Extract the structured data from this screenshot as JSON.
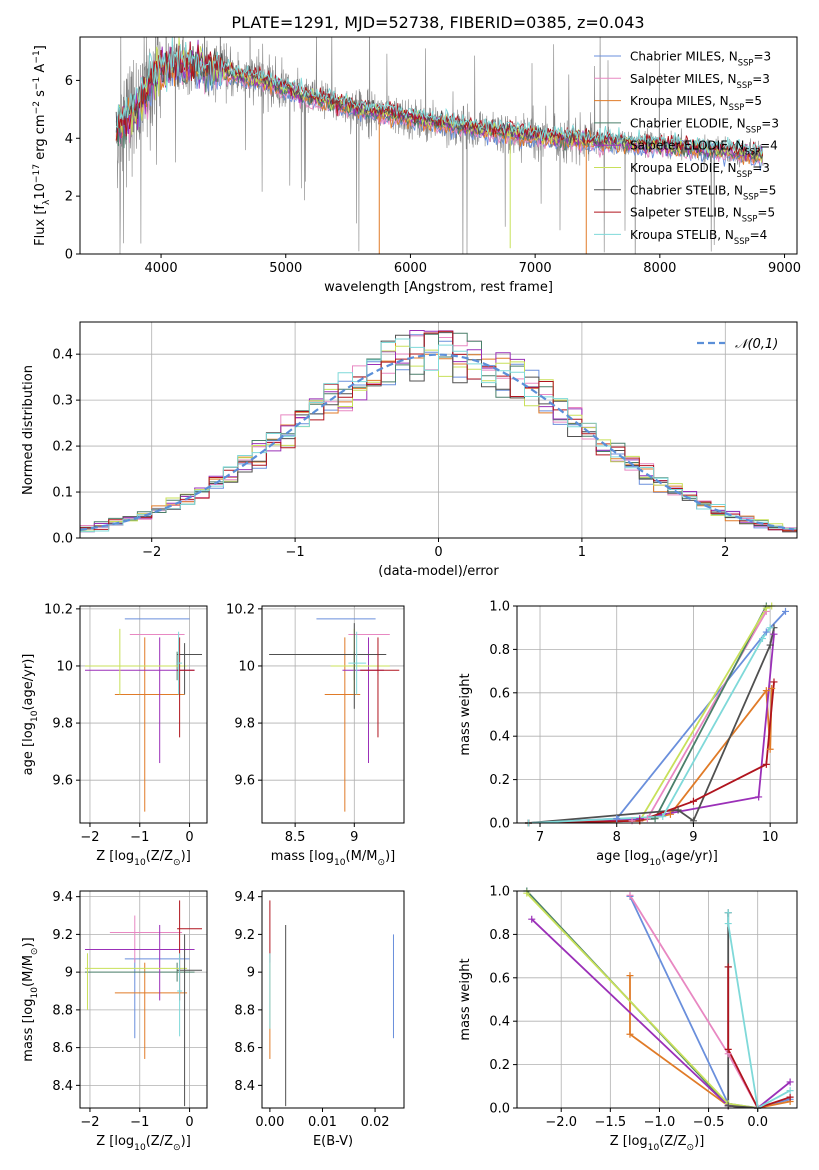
{
  "title": "PLATE=1291, MJD=52738, FIBERID=0385, z=0.043",
  "colors": {
    "Chabrier MILES": "#6a8fdc",
    "Salpeter MILES": "#e888c2",
    "Kroupa MILES": "#e07b28",
    "Chabrier ELODIE": "#4a7f6a",
    "Salpeter ELODIE": "#9b30b8",
    "Kroupa ELODIE": "#c8e05a",
    "Chabrier STELIB": "#505050",
    "Salpeter STELIB": "#b0141e",
    "Kroupa STELIB": "#7fd9d9",
    "data": "#808080",
    "normal": "#5b8fd8",
    "grid": "#b0b0b0"
  },
  "chart_data": [
    {
      "id": "spectrum",
      "type": "line",
      "xlabel": "wavelength [Angstrom, rest frame]",
      "ylabel": "Flux [f$_\\lambda$10$^{-17}$ erg cm$^{-2}$ s$^{-1}$ A$^{-1}$]",
      "xlim": [
        3350,
        9100
      ],
      "ylim": [
        0,
        7.5
      ],
      "xticks": [
        4000,
        5000,
        6000,
        7000,
        8000,
        9000
      ],
      "yticks": [
        0,
        2,
        4,
        6
      ],
      "grid": false,
      "legend_position": "top-right",
      "legend": [
        {
          "name": "Chabrier MILES",
          "nssp": "3"
        },
        {
          "name": "Salpeter MILES",
          "nssp": "3"
        },
        {
          "name": "Kroupa MILES",
          "nssp": "5"
        },
        {
          "name": "Chabrier ELODIE",
          "nssp": "3"
        },
        {
          "name": "Salpeter ELODIE",
          "nssp": "4"
        },
        {
          "name": "Kroupa ELODIE",
          "nssp": "3"
        },
        {
          "name": "Chabrier STELIB",
          "nssp": "5"
        },
        {
          "name": "Salpeter STELIB",
          "nssp": "5"
        },
        {
          "name": "Kroupa STELIB",
          "nssp": "4"
        }
      ],
      "data_range": [
        3640,
        8830
      ],
      "continuum_points": [
        [
          3640,
          4.2
        ],
        [
          3800,
          5.0
        ],
        [
          3950,
          6.2
        ],
        [
          4100,
          6.6
        ],
        [
          4500,
          6.3
        ],
        [
          4800,
          6.0
        ],
        [
          5200,
          5.4
        ],
        [
          5600,
          5.0
        ],
        [
          6000,
          4.7
        ],
        [
          6500,
          4.35
        ],
        [
          7000,
          4.05
        ],
        [
          7500,
          3.9
        ],
        [
          8000,
          3.75
        ],
        [
          8500,
          3.55
        ],
        [
          8830,
          3.4
        ]
      ]
    },
    {
      "id": "residuals",
      "type": "histogram",
      "xlabel": "(data-model)/error",
      "ylabel": "Normed distribution",
      "xlim": [
        -2.5,
        2.5
      ],
      "ylim": [
        0,
        0.47
      ],
      "xticks": [
        -2,
        -1,
        0,
        1,
        2
      ],
      "yticks": [
        0.0,
        0.1,
        0.2,
        0.3,
        0.4
      ],
      "grid": true,
      "bin_width": 0.1,
      "legend_position": "top-right",
      "legend": [
        {
          "name": "$\\mathcal{N}(0,1)$",
          "style": "dashed"
        }
      ]
    },
    {
      "id": "age_vs_Z",
      "type": "errorbar",
      "xlabel": "Z [log$_{10}$($Z$/$Z_\\odot$)]",
      "ylabel": "age  [log$_{10}$($age$/$yr$)]",
      "xlim": [
        -2.2,
        0.35
      ],
      "ylim": [
        9.45,
        10.21
      ],
      "xticks": [
        -2,
        -1,
        0
      ],
      "yticks": [
        9.6,
        9.8,
        10.0,
        10.2
      ],
      "grid": true,
      "points": [
        {
          "model": "Chabrier MILES",
          "x": -0.7,
          "y": 10.165,
          "xlo": -1.3,
          "xhi": 0.0,
          "ylo": 10.165,
          "yhi": 10.165
        },
        {
          "model": "Salpeter MILES",
          "x": -0.65,
          "y": 10.11,
          "xlo": -1.2,
          "xhi": -0.1,
          "ylo": 10.11,
          "yhi": 10.11
        },
        {
          "model": "Kroupa MILES",
          "x": -0.9,
          "y": 9.9,
          "xlo": -1.5,
          "xhi": -0.1,
          "ylo": 9.49,
          "yhi": 10.1
        },
        {
          "model": "Chabrier ELODIE",
          "x": -0.25,
          "y": 10.0,
          "xlo": -0.3,
          "xhi": -0.2,
          "ylo": 9.95,
          "yhi": 10.05
        },
        {
          "model": "Salpeter ELODIE",
          "x": -0.6,
          "y": 9.985,
          "xlo": -2.1,
          "xhi": 0.1,
          "ylo": 9.66,
          "yhi": 10.1
        },
        {
          "model": "Kroupa ELODIE",
          "x": -1.4,
          "y": 10.0,
          "xlo": -2.1,
          "xhi": -0.05,
          "ylo": 9.9,
          "yhi": 10.13
        },
        {
          "model": "Chabrier STELIB",
          "x": -0.1,
          "y": 10.04,
          "xlo": -0.25,
          "xhi": 0.25,
          "ylo": 9.9,
          "yhi": 10.08
        },
        {
          "model": "Salpeter STELIB",
          "x": -0.2,
          "y": 9.985,
          "xlo": -0.25,
          "xhi": 0.1,
          "ylo": 9.75,
          "yhi": 10.1
        },
        {
          "model": "Kroupa STELIB",
          "x": -0.22,
          "y": 10.01,
          "xlo": -0.25,
          "xhi": -0.15,
          "ylo": 9.9,
          "yhi": 10.12
        }
      ]
    },
    {
      "id": "age_vs_mass",
      "type": "errorbar",
      "xlabel": "mass [log$_{10}$($M$/$M_\\odot$)]",
      "ylabel": "",
      "xlim": [
        8.22,
        9.42
      ],
      "ylim": [
        9.45,
        10.21
      ],
      "xticks": [
        8.5,
        9.0
      ],
      "yticks": [
        9.6,
        9.8,
        10.0,
        10.2
      ],
      "grid": true,
      "points": [
        {
          "model": "Chabrier MILES",
          "x": 9.05,
          "y": 10.165,
          "xlo": 8.68,
          "xhi": 9.18,
          "ylo": 10.165,
          "yhi": 10.165
        },
        {
          "model": "Salpeter MILES",
          "x": 9.15,
          "y": 10.11,
          "xlo": 8.95,
          "xhi": 9.3,
          "ylo": 10.11,
          "yhi": 10.11
        },
        {
          "model": "Kroupa MILES",
          "x": 8.92,
          "y": 9.9,
          "xlo": 8.75,
          "xhi": 9.05,
          "ylo": 9.49,
          "yhi": 10.1
        },
        {
          "model": "Chabrier ELODIE",
          "x": 9.0,
          "y": 10.0,
          "xlo": 8.95,
          "xhi": 9.05,
          "ylo": 9.95,
          "yhi": 10.05
        },
        {
          "model": "Salpeter ELODIE",
          "x": 9.12,
          "y": 9.985,
          "xlo": 8.9,
          "xhi": 9.25,
          "ylo": 9.66,
          "yhi": 10.1
        },
        {
          "model": "Kroupa ELODIE",
          "x": 9.0,
          "y": 10.0,
          "xlo": 8.8,
          "xhi": 9.3,
          "ylo": 9.9,
          "yhi": 10.13
        },
        {
          "model": "Chabrier STELIB",
          "x": 9.0,
          "y": 10.04,
          "xlo": 8.28,
          "xhi": 9.27,
          "ylo": 9.85,
          "yhi": 10.15
        },
        {
          "model": "Salpeter STELIB",
          "x": 9.2,
          "y": 9.985,
          "xlo": 9.05,
          "xhi": 9.38,
          "ylo": 9.75,
          "yhi": 10.1
        },
        {
          "model": "Kroupa STELIB",
          "x": 9.02,
          "y": 10.01,
          "xlo": 8.95,
          "xhi": 9.1,
          "ylo": 9.9,
          "yhi": 10.12
        }
      ]
    },
    {
      "id": "mass_weight_vs_age",
      "type": "line",
      "xlabel": "age  [log$_{10}$($age$/$yr$)]",
      "ylabel": "mass weight",
      "xlim": [
        6.7,
        10.35
      ],
      "ylim": [
        0,
        1
      ],
      "xticks": [
        7,
        8,
        9,
        10
      ],
      "yticks": [
        0.0,
        0.2,
        0.4,
        0.6,
        0.8,
        1.0
      ],
      "grid": true,
      "series": [
        {
          "model": "Chabrier MILES",
          "x": [
            6.85,
            8.0,
            9.95,
            10.2
          ],
          "y": [
            0.0,
            0.02,
            0.88,
            0.975
          ]
        },
        {
          "model": "Salpeter MILES",
          "x": [
            6.85,
            8.2,
            8.4,
            9.95
          ],
          "y": [
            0.0,
            0.01,
            0.02,
            0.975
          ]
        },
        {
          "model": "Kroupa MILES",
          "x": [
            6.85,
            8.3,
            8.7,
            9.95,
            10.0,
            10.02
          ],
          "y": [
            0.0,
            0.01,
            0.04,
            0.61,
            0.34,
            0.62
          ]
        },
        {
          "model": "Chabrier ELODIE",
          "x": [
            6.85,
            8.5,
            9.95
          ],
          "y": [
            0.0,
            0.02,
            1.0
          ]
        },
        {
          "model": "Salpeter ELODIE",
          "x": [
            6.85,
            8.3,
            9.85,
            10.05
          ],
          "y": [
            0.0,
            0.02,
            0.12,
            0.87
          ]
        },
        {
          "model": "Kroupa ELODIE",
          "x": [
            6.85,
            8.3,
            9.95,
            10.02
          ],
          "y": [
            0.0,
            0.01,
            0.99,
            1.0
          ]
        },
        {
          "model": "Chabrier STELIB",
          "x": [
            6.85,
            8.8,
            9.0,
            10.0,
            10.05
          ],
          "y": [
            0.0,
            0.06,
            0.01,
            0.82,
            0.9
          ]
        },
        {
          "model": "Salpeter STELIB",
          "x": [
            6.85,
            8.3,
            9.0,
            9.95,
            10.05
          ],
          "y": [
            0.0,
            0.01,
            0.1,
            0.27,
            0.65
          ]
        },
        {
          "model": "Kroupa STELIB",
          "x": [
            6.85,
            8.6,
            9.9,
            10.0
          ],
          "y": [
            0.0,
            0.03,
            0.85,
            0.9
          ]
        }
      ]
    },
    {
      "id": "mass_vs_Z",
      "type": "errorbar",
      "xlabel": "Z [log$_{10}$($Z$/$Z_\\odot$)]",
      "ylabel": "mass [log$_{10}$($M$/$M_\\odot$)]",
      "xlim": [
        -2.2,
        0.35
      ],
      "ylim": [
        8.28,
        9.43
      ],
      "xticks": [
        -2,
        -1,
        0
      ],
      "yticks": [
        8.4,
        8.6,
        8.8,
        9.0,
        9.2,
        9.4
      ],
      "grid": true,
      "points": [
        {
          "model": "Chabrier MILES",
          "x": -1.1,
          "y": 9.07,
          "xlo": -1.3,
          "xhi": 0.0,
          "ylo": 8.65,
          "yhi": 9.07
        },
        {
          "model": "Salpeter MILES",
          "x": -1.1,
          "y": 9.21,
          "xlo": -1.6,
          "xhi": -0.15,
          "ylo": 9.05,
          "yhi": 9.3
        },
        {
          "model": "Kroupa MILES",
          "x": -0.9,
          "y": 8.89,
          "xlo": -1.5,
          "xhi": -0.05,
          "ylo": 8.54,
          "yhi": 9.05
        },
        {
          "model": "Chabrier ELODIE",
          "x": -0.25,
          "y": 9.0,
          "xlo": -2.1,
          "xhi": 0.1,
          "ylo": 8.95,
          "yhi": 9.05
        },
        {
          "model": "Salpeter ELODIE",
          "x": -0.6,
          "y": 9.12,
          "xlo": -2.1,
          "xhi": 0.1,
          "ylo": 8.85,
          "yhi": 9.25
        },
        {
          "model": "Kroupa ELODIE",
          "x": -2.05,
          "y": 9.02,
          "xlo": -2.1,
          "xhi": -0.05,
          "ylo": 8.8,
          "yhi": 9.1
        },
        {
          "model": "Chabrier STELIB",
          "x": -0.1,
          "y": 9.01,
          "xlo": -0.25,
          "xhi": 0.25,
          "ylo": 8.29,
          "yhi": 9.2
        },
        {
          "model": "Salpeter STELIB",
          "x": -0.2,
          "y": 9.23,
          "xlo": -0.25,
          "xhi": 0.25,
          "ylo": 8.85,
          "yhi": 9.38
        },
        {
          "model": "Kroupa STELIB",
          "x": -0.2,
          "y": 8.9,
          "xlo": -0.25,
          "xhi": -0.15,
          "ylo": 8.66,
          "yhi": 9.1
        }
      ]
    },
    {
      "id": "mass_vs_ebv",
      "type": "errorbar",
      "xlabel": "E(B-V)",
      "ylabel": "",
      "xlim": [
        -0.0015,
        0.0255
      ],
      "ylim": [
        8.28,
        9.43
      ],
      "xticks": [
        0.0,
        0.01,
        0.02
      ],
      "xtick_labels": [
        "0.00",
        "0.01",
        "0.02"
      ],
      "yticks": [
        8.4,
        8.6,
        8.8,
        9.0,
        9.2,
        9.4
      ],
      "grid": false,
      "points": [
        {
          "model": "Chabrier MILES",
          "x": 0.0235,
          "y": 9.07,
          "ylo": 8.65,
          "yhi": 9.2
        },
        {
          "model": "Kroupa MILES",
          "x": 0.0,
          "y": 8.89,
          "ylo": 8.54,
          "yhi": 9.05
        },
        {
          "model": "Salpeter STELIB",
          "x": 0.0,
          "y": 9.23,
          "ylo": 9.05,
          "yhi": 9.38
        },
        {
          "model": "Chabrier STELIB",
          "x": 0.003,
          "y": 9.01,
          "ylo": 8.29,
          "yhi": 9.25
        },
        {
          "model": "Kroupa STELIB",
          "x": 0.0,
          "y": 8.9,
          "ylo": 8.7,
          "yhi": 9.1
        }
      ]
    },
    {
      "id": "mass_weight_vs_Z",
      "type": "line",
      "xlabel": "Z [log$_{10}$($Z$/$Z_\\odot$)]",
      "ylabel": "mass weight",
      "xlim": [
        -2.45,
        0.4
      ],
      "ylim": [
        0,
        1
      ],
      "xticks": [
        -2.0,
        -1.5,
        -1.0,
        -0.5,
        0.0
      ],
      "xtick_labels": [
        "−2.0",
        "−1.5",
        "−1.0",
        "−0.5",
        "0.0"
      ],
      "yticks": [
        0.0,
        0.2,
        0.4,
        0.6,
        0.8,
        1.0
      ],
      "grid": true,
      "series": [
        {
          "model": "Chabrier MILES",
          "x": [
            -1.3,
            -0.3,
            0.0,
            0.33
          ],
          "y": [
            0.975,
            0.02,
            0.0,
            0.04
          ]
        },
        {
          "model": "Salpeter MILES",
          "x": [
            -1.3,
            -0.3,
            0.0
          ],
          "y": [
            0.98,
            0.25,
            0.0
          ]
        },
        {
          "model": "Kroupa MILES",
          "x": [
            -1.3,
            -1.3,
            -0.3,
            0.0,
            0.33
          ],
          "y": [
            0.61,
            0.34,
            0.01,
            0.0,
            0.03
          ]
        },
        {
          "model": "Chabrier ELODIE",
          "x": [
            -2.35,
            -0.3,
            0.0
          ],
          "y": [
            1.0,
            0.01,
            0.0
          ]
        },
        {
          "model": "Salpeter ELODIE",
          "x": [
            -2.3,
            -0.3,
            0.0,
            0.33
          ],
          "y": [
            0.87,
            0.01,
            0.0,
            0.12
          ]
        },
        {
          "model": "Kroupa ELODIE",
          "x": [
            -2.35,
            -0.3,
            0.0
          ],
          "y": [
            0.99,
            0.02,
            0.0
          ]
        },
        {
          "model": "Chabrier STELIB",
          "x": [
            -0.3,
            -0.3,
            -0.3,
            0.0
          ],
          "y": [
            0.9,
            0.65,
            0.01,
            0.0
          ]
        },
        {
          "model": "Salpeter STELIB",
          "x": [
            -0.3,
            -0.3,
            0.0,
            0.33
          ],
          "y": [
            0.65,
            0.27,
            0.0,
            0.05
          ]
        },
        {
          "model": "Kroupa STELIB",
          "x": [
            -0.3,
            -0.3,
            0.0,
            0.33
          ],
          "y": [
            0.9,
            0.85,
            0.0,
            0.08
          ]
        }
      ]
    }
  ]
}
